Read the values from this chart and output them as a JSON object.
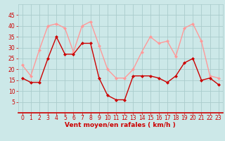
{
  "x": [
    0,
    1,
    2,
    3,
    4,
    5,
    6,
    7,
    8,
    9,
    10,
    11,
    12,
    13,
    14,
    15,
    16,
    17,
    18,
    19,
    20,
    21,
    22,
    23
  ],
  "wind_avg": [
    16,
    14,
    14,
    25,
    35,
    27,
    27,
    32,
    32,
    16,
    8,
    6,
    6,
    17,
    17,
    17,
    16,
    14,
    17,
    23,
    25,
    15,
    16,
    13
  ],
  "wind_gust": [
    22,
    17,
    29,
    40,
    41,
    39,
    28,
    40,
    42,
    31,
    20,
    16,
    16,
    20,
    28,
    35,
    32,
    33,
    26,
    39,
    41,
    33,
    17,
    16
  ],
  "wind_avg_color": "#cc0000",
  "wind_gust_color": "#ff9999",
  "bg_color": "#cce8e8",
  "grid_color": "#aacccc",
  "xlabel": "Vent moyen/en rafales ( km/h )",
  "xlabel_color": "#cc0000",
  "ylim": [
    0,
    50
  ],
  "xlim": [
    -0.5,
    23.5
  ],
  "yticks": [
    5,
    10,
    15,
    20,
    25,
    30,
    35,
    40,
    45
  ],
  "xticks": [
    0,
    1,
    2,
    3,
    4,
    5,
    6,
    7,
    8,
    9,
    10,
    11,
    12,
    13,
    14,
    15,
    16,
    17,
    18,
    19,
    20,
    21,
    22,
    23
  ],
  "marker_size": 2.5,
  "line_width": 1.0
}
